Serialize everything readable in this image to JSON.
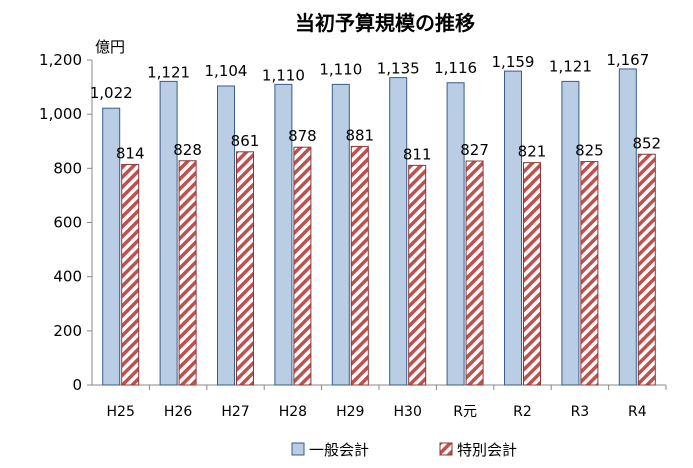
{
  "chart_data": {
    "type": "bar",
    "title": "当初予算規模の推移",
    "unit_label": "億円",
    "categories": [
      "H25",
      "H26",
      "H27",
      "H28",
      "H29",
      "H30",
      "R元",
      "R2",
      "R3",
      "R4"
    ],
    "series": [
      {
        "name": "一般会計",
        "values": [
          1022,
          1121,
          1104,
          1110,
          1110,
          1135,
          1116,
          1159,
          1121,
          1167
        ],
        "labels": [
          "1,022",
          "1,121",
          "1,104",
          "1,110",
          "1,110",
          "1,135",
          "1,116",
          "1,159",
          "1,121",
          "1,167"
        ],
        "color": "#b9cde5",
        "stroke": "#385d8a",
        "pattern": "solid"
      },
      {
        "name": "特別会計",
        "values": [
          814,
          828,
          861,
          878,
          881,
          811,
          827,
          821,
          825,
          852
        ],
        "labels": [
          "814",
          "828",
          "861",
          "878",
          "881",
          "811",
          "827",
          "821",
          "825",
          "852"
        ],
        "color": "#c0504d",
        "stroke": "#8c3836",
        "pattern": "diagonal-stripes"
      }
    ],
    "ylim": [
      0,
      1200
    ],
    "yticks": [
      0,
      200,
      400,
      600,
      800,
      1000,
      1200
    ],
    "ytick_labels": [
      "0",
      "200",
      "400",
      "600",
      "800",
      "1,000",
      "1,200"
    ],
    "grid": false,
    "legend_position": "bottom-center"
  }
}
